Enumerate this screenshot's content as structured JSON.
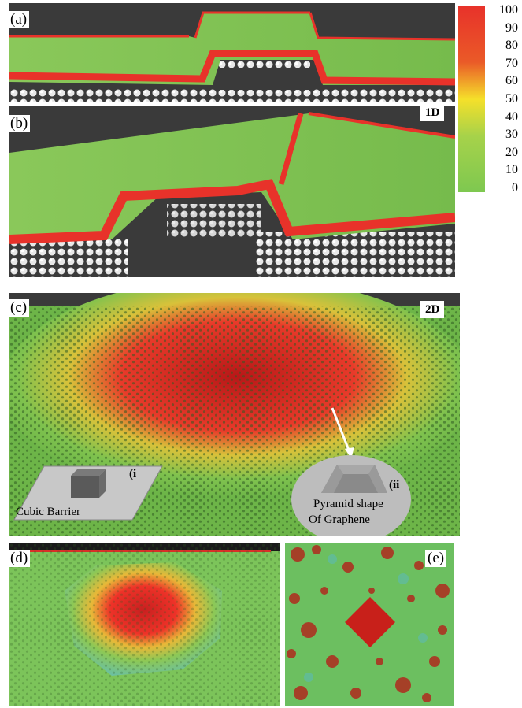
{
  "panels": {
    "a": {
      "label": "(a)"
    },
    "b": {
      "label": "(b)",
      "tag": "1D"
    },
    "c": {
      "label": "(c)",
      "tag": "2D",
      "inset_i": {
        "marker": "(i",
        "caption": "Cubic Barrier"
      },
      "inset_ii": {
        "marker": "(ii",
        "caption_line1": "Pyramid shape",
        "caption_line2": "Of Graphene"
      }
    },
    "d": {
      "label": "(d)"
    },
    "e": {
      "label": "(e)"
    }
  },
  "colorbar": {
    "ticks": [
      "100",
      "90",
      "80",
      "70",
      "60",
      "50",
      "40",
      "30",
      "20",
      "10",
      "0"
    ],
    "colors": {
      "high": "#e8322a",
      "mid": "#f5e02a",
      "low": "#7ec850"
    }
  }
}
